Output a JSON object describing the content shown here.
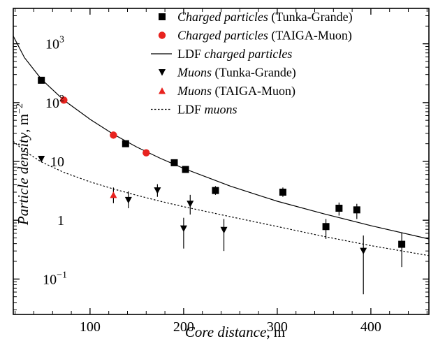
{
  "chart_data": {
    "type": "scatter",
    "title": "",
    "xlabel": {
      "italic": "Core distance",
      "rest": ", m"
    },
    "ylabel": {
      "italic": "Particle density",
      "rest": ", m",
      "sup": "−2"
    },
    "xlim": [
      18,
      462
    ],
    "ylim": [
      0.025,
      4000
    ],
    "yscale": "log",
    "x_ticks": [
      100,
      200,
      300,
      400
    ],
    "x_tick_labels": [
      "100",
      "200",
      "300",
      "400"
    ],
    "y_ticks": [
      0.1,
      1,
      10,
      100,
      1000
    ],
    "y_tick_labels": [
      {
        "base": "10",
        "sup": "−1"
      },
      {
        "base": "1",
        "sup": ""
      },
      {
        "base": "10",
        "sup": ""
      },
      {
        "base": "10",
        "sup": "2"
      },
      {
        "base": "10",
        "sup": "3"
      }
    ],
    "grid": false,
    "legend_position": "top-right",
    "series": [
      {
        "name": {
          "italic": "Charged particles",
          "rest": " (Tunka-Grande)"
        },
        "marker": "square",
        "color": "#000000",
        "points": [
          {
            "x": 48,
            "y": 240,
            "lo": 240,
            "hi": 240
          },
          {
            "x": 138,
            "y": 20,
            "lo": 20,
            "hi": 20
          },
          {
            "x": 190,
            "y": 9.5,
            "lo": 9.5,
            "hi": 9.5
          },
          {
            "x": 202,
            "y": 7.3,
            "lo": 7.3,
            "hi": 7.3
          },
          {
            "x": 234,
            "y": 3.2,
            "lo": 2.7,
            "hi": 3.8
          },
          {
            "x": 306,
            "y": 3.0,
            "lo": 2.5,
            "hi": 3.6
          },
          {
            "x": 352,
            "y": 0.78,
            "lo": 0.48,
            "hi": 1.05
          },
          {
            "x": 366,
            "y": 1.6,
            "lo": 1.2,
            "hi": 2.0
          },
          {
            "x": 385,
            "y": 1.5,
            "lo": 1.05,
            "hi": 1.9
          },
          {
            "x": 433,
            "y": 0.39,
            "lo": 0.16,
            "hi": 0.62
          }
        ]
      },
      {
        "name": {
          "italic": "Charged particles",
          "rest": " (TAIGA-Muon)"
        },
        "marker": "circle",
        "color": "#e8231f",
        "points": [
          {
            "x": 72,
            "y": 110
          },
          {
            "x": 125,
            "y": 28
          },
          {
            "x": 160,
            "y": 14
          }
        ]
      },
      {
        "name": {
          "italic": "",
          "rest": "LDF ",
          "italic_after": "charged particles"
        },
        "marker": "line-solid",
        "color": "#000000",
        "curve": {
          "x": [
            18,
            30,
            48,
            72,
            100,
            125,
            150,
            175,
            200,
            250,
            300,
            350,
            400,
            462
          ],
          "y": [
            1350,
            580,
            250,
            110,
            52,
            29,
            17.5,
            11.3,
            7.6,
            3.8,
            2.1,
            1.28,
            0.81,
            0.48
          ]
        }
      },
      {
        "name": {
          "italic": "Muons",
          "rest": "  (Tunka-Grande)"
        },
        "marker": "triangle-down",
        "color": "#000000",
        "points": [
          {
            "x": 48,
            "y": 11,
            "lo": 11,
            "hi": 11
          },
          {
            "x": 141,
            "y": 2.2,
            "lo": 1.6,
            "hi": 3.1
          },
          {
            "x": 172,
            "y": 3.2,
            "lo": 2.5,
            "hi": 4.1
          },
          {
            "x": 200,
            "y": 0.72,
            "lo": 0.33,
            "hi": 1.1
          },
          {
            "x": 207,
            "y": 1.9,
            "lo": 1.25,
            "hi": 2.7
          },
          {
            "x": 243,
            "y": 0.68,
            "lo": 0.3,
            "hi": 1.05
          },
          {
            "x": 392,
            "y": 0.3,
            "lo": 0.055,
            "hi": 0.55
          }
        ]
      },
      {
        "name": {
          "italic": "Muons",
          "rest": " (TAIGA-Muon)"
        },
        "marker": "triangle-up",
        "color": "#e8231f",
        "points": [
          {
            "x": 125,
            "y": 2.7,
            "lo": 1.95,
            "hi": 3.6
          }
        ]
      },
      {
        "name": {
          "italic": "",
          "rest": "LDF ",
          "italic_after": "muons"
        },
        "marker": "line-dotted",
        "color": "#000000",
        "curve": {
          "x": [
            18,
            30,
            48,
            72,
            100,
            125,
            150,
            175,
            200,
            250,
            300,
            350,
            400,
            462
          ],
          "y": [
            22,
            15,
            9.8,
            6.5,
            4.5,
            3.4,
            2.65,
            2.1,
            1.7,
            1.15,
            0.78,
            0.53,
            0.37,
            0.25
          ]
        }
      }
    ]
  }
}
